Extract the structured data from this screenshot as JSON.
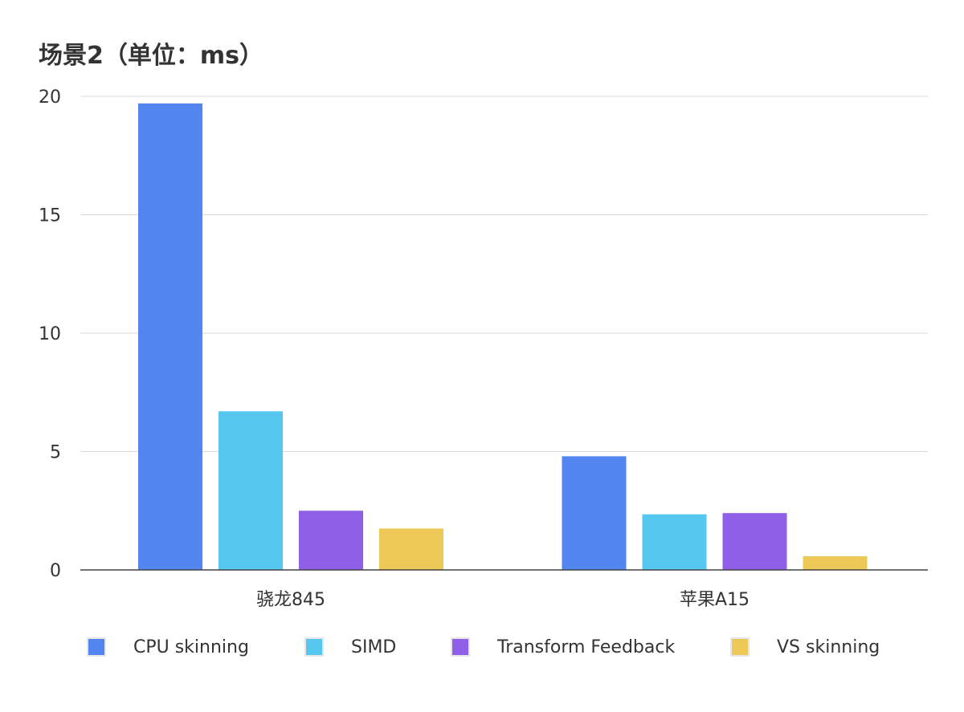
{
  "chart_data": {
    "type": "bar",
    "title": "场景2（单位：ms）",
    "categories": [
      "骁龙845",
      "苹果A15"
    ],
    "series": [
      {
        "name": "CPU skinning",
        "color": "#5385f0",
        "values": [
          19.7,
          4.8
        ]
      },
      {
        "name": "SIMD",
        "color": "#56c8f0",
        "values": [
          6.7,
          2.35
        ]
      },
      {
        "name": "Transform Feedback",
        "color": "#8f5fe8",
        "values": [
          2.5,
          2.4
        ]
      },
      {
        "name": "VS skinning",
        "color": "#ecc957",
        "values": [
          1.75,
          0.58
        ]
      }
    ],
    "yticks": [
      "0",
      "5",
      "10",
      "15",
      "20"
    ],
    "ylim": [
      0,
      20
    ],
    "grid": true,
    "legend_position": "bottom"
  }
}
